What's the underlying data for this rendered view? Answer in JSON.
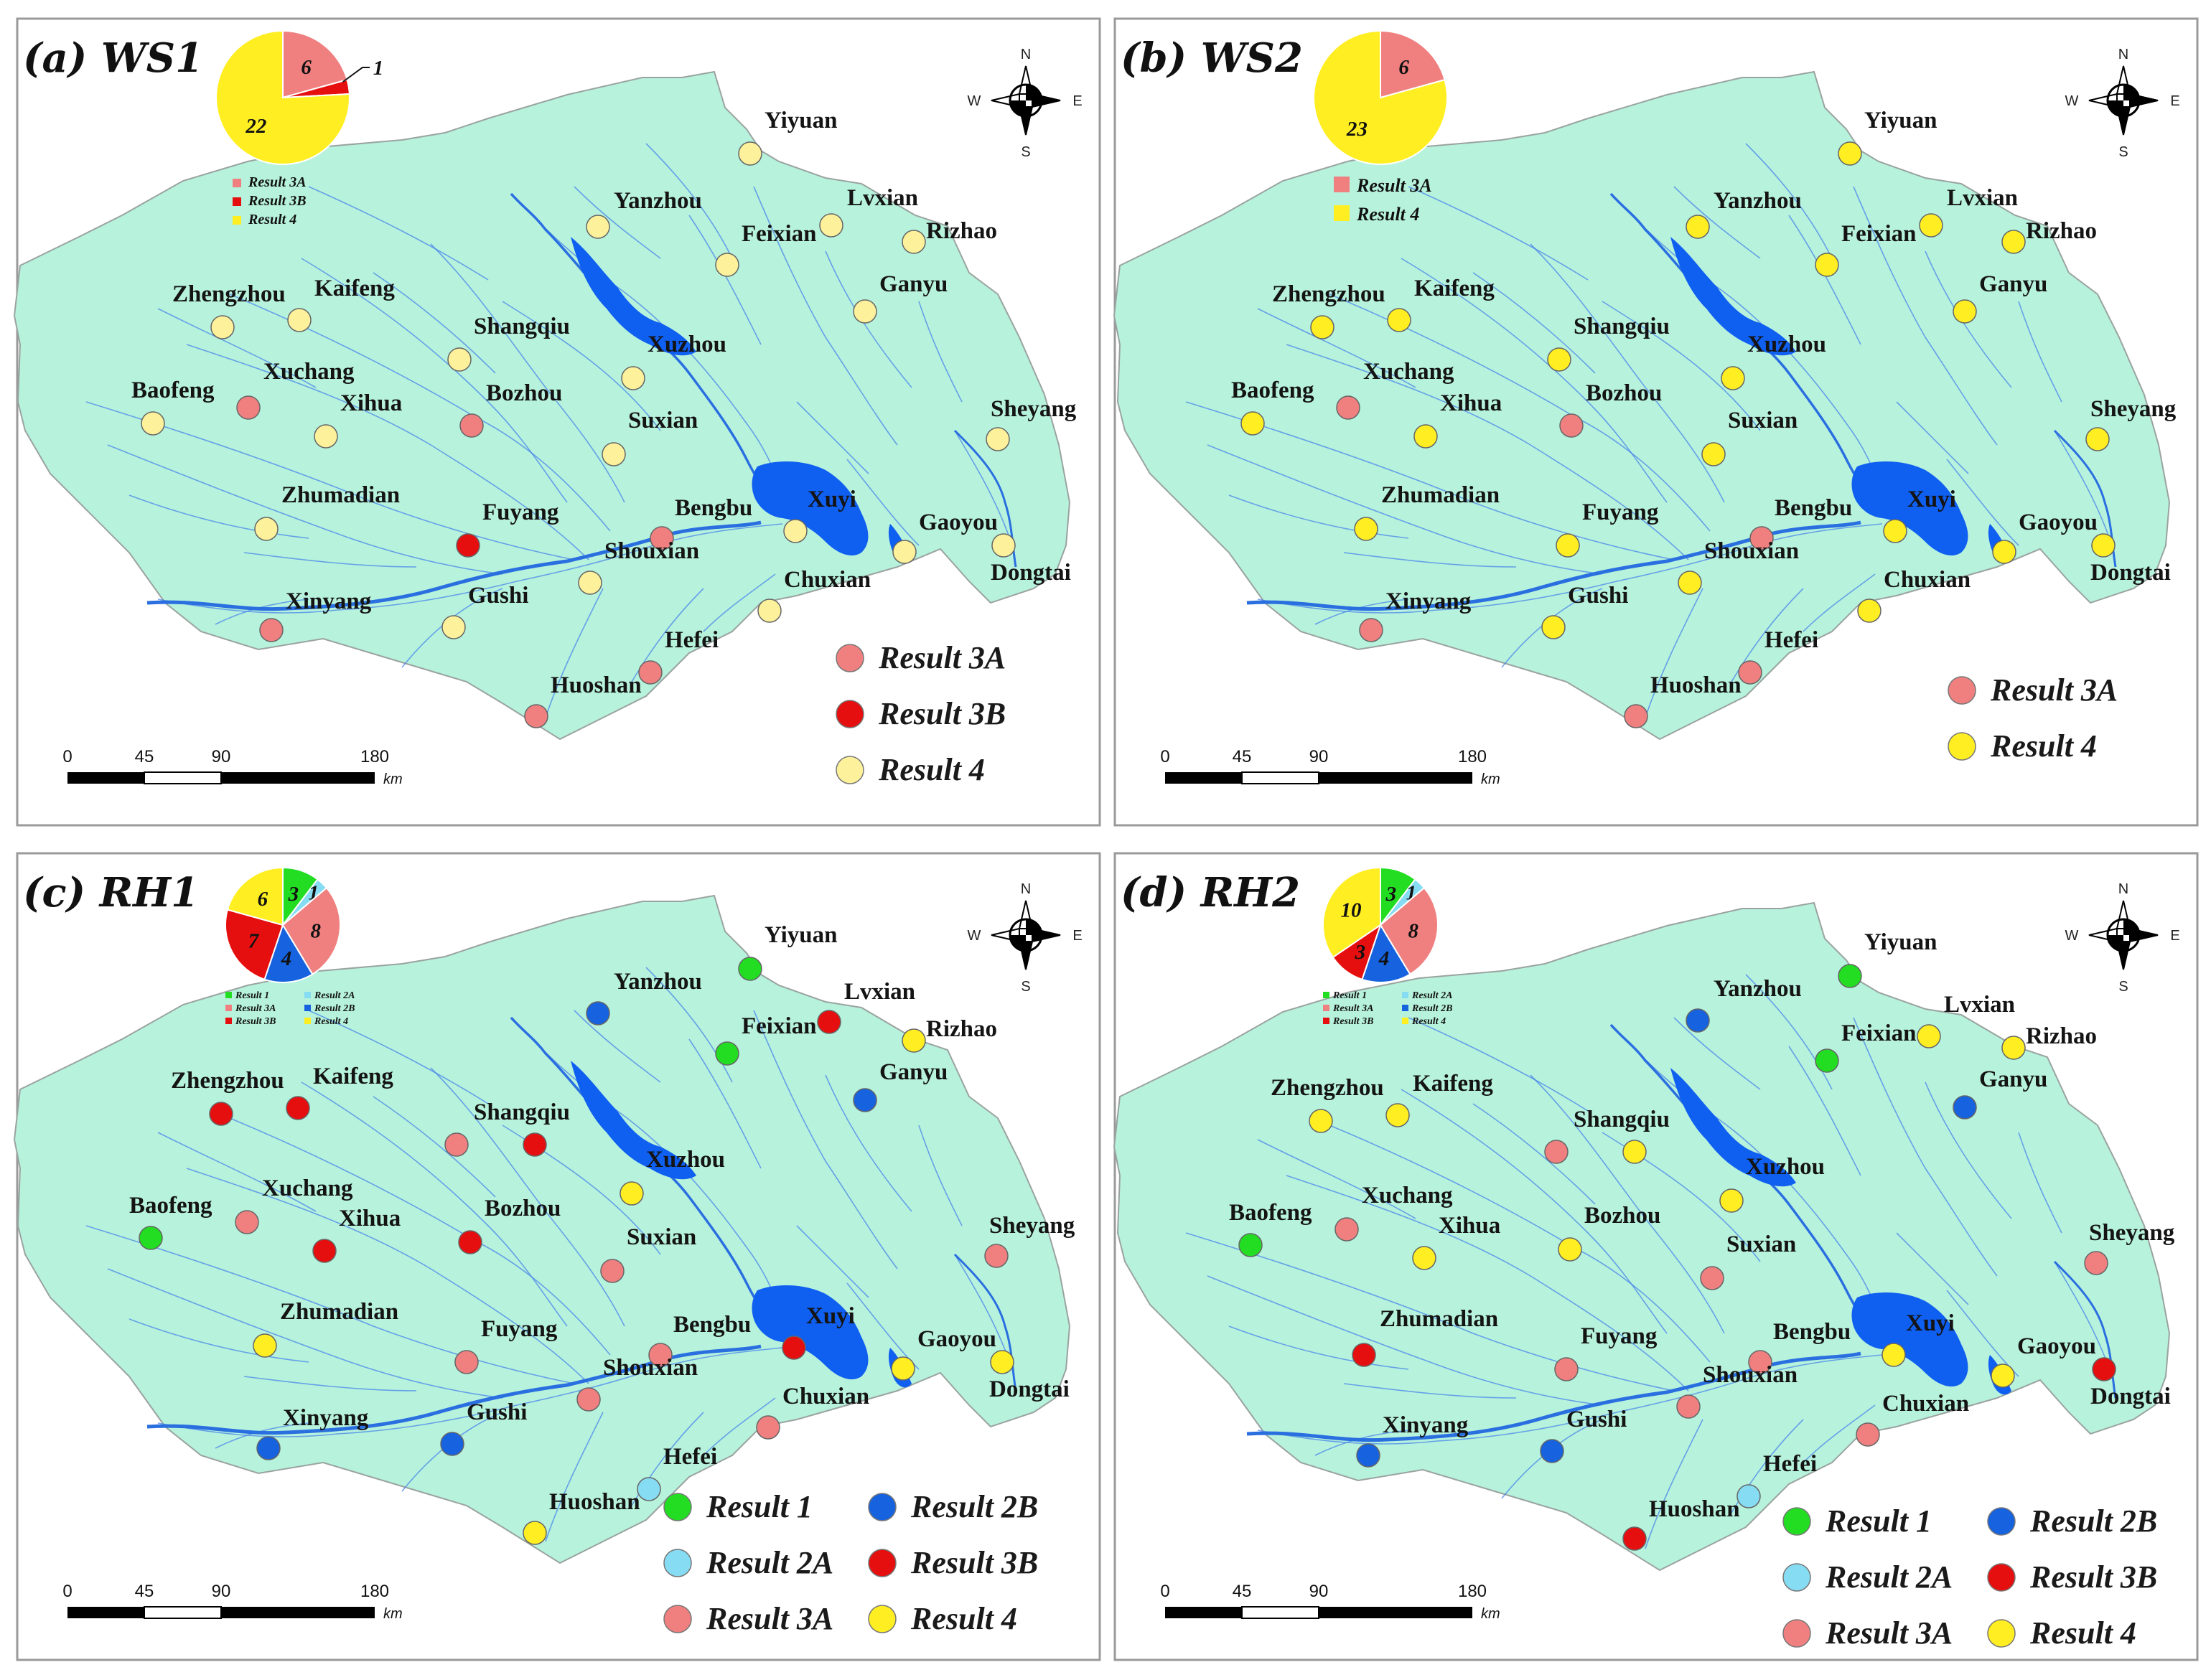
{
  "colors": {
    "land": "#b7f2dd",
    "border": "#9aa3a0",
    "river": "#2a6fe0",
    "lake": "#0f5ff0",
    "Result 1": "#22dd22",
    "Result 2A": "#86dcf2",
    "Result 2B": "#1762de",
    "Result 3A": "#f08080",
    "Result 3B": "#e60f0f",
    "Result 4": "#ffee22",
    "Result 4 pale": "#fdf29b"
  },
  "compass": {
    "n": "N",
    "s": "S",
    "e": "E",
    "w": "W"
  },
  "scale": {
    "ticks": [
      "0",
      "45",
      "90",
      "180"
    ],
    "unit": "km"
  },
  "cities": [
    {
      "name": "Yiyuan"
    },
    {
      "name": "Yanzhou"
    },
    {
      "name": "Lvxian"
    },
    {
      "name": "Rizhao"
    },
    {
      "name": "Feixian"
    },
    {
      "name": "Ganyu"
    },
    {
      "name": "Zhengzhou"
    },
    {
      "name": "Kaifeng"
    },
    {
      "name": "Shangqiu"
    },
    {
      "name": "Xuzhou"
    },
    {
      "name": "Baofeng"
    },
    {
      "name": "Xuchang"
    },
    {
      "name": "Xihua"
    },
    {
      "name": "Bozhou"
    },
    {
      "name": "Suxian"
    },
    {
      "name": "Sheyang"
    },
    {
      "name": "Zhumadian"
    },
    {
      "name": "Fuyang"
    },
    {
      "name": "Bengbu"
    },
    {
      "name": "Xuyi"
    },
    {
      "name": "Gaoyou"
    },
    {
      "name": "Dongtai"
    },
    {
      "name": "Shouxian"
    },
    {
      "name": "Chuxian"
    },
    {
      "name": "Xinyang"
    },
    {
      "name": "Gushi"
    },
    {
      "name": "Hefei"
    },
    {
      "name": "Huoshan"
    }
  ],
  "panels": [
    {
      "id": "ws1",
      "title": "(a) WS1",
      "legend": [
        "Result 3A",
        "Result 3B",
        "Result 4"
      ],
      "pie": {
        "slices": [
          {
            "cls": "Result 3A",
            "value": 6,
            "label": "6"
          },
          {
            "cls": "Result 3B",
            "value": 1,
            "label": "1"
          },
          {
            "cls": "Result 4",
            "value": 22,
            "label": "22"
          }
        ],
        "legend": [
          "Result 3A",
          "Result 3B",
          "Result 4"
        ]
      },
      "city_results": {
        "Yiyuan": "Result 4",
        "Yanzhou": "Result 4",
        "Lvxian": "Result 4",
        "Rizhao": "Result 4",
        "Feixian": "Result 4",
        "Ganyu": "Result 4",
        "Zhengzhou": "Result 4",
        "Kaifeng": "Result 4",
        "Shangqiu": "Result 4",
        "Xuzhou": "Result 4",
        "Baofeng": "Result 4",
        "Xuchang": "Result 3A",
        "Xihua": "Result 4",
        "Bozhou": "Result 3A",
        "Suxian": "Result 4",
        "Sheyang": "Result 4",
        "Zhumadian": "Result 4",
        "Fuyang": "Result 3B",
        "Bengbu": "Result 3A",
        "Xuyi": "Result 4",
        "Gaoyou": "Result 4",
        "Dongtai": "Result 4",
        "Shouxian": "Result 4",
        "Chuxian": "Result 4",
        "Xinyang": "Result 3A",
        "Gushi": "Result 4",
        "Hefei": "Result 3A",
        "Huoshan": "Result 3A"
      }
    },
    {
      "id": "ws2",
      "title": "(b) WS2",
      "legend": [
        "Result 3A",
        "Result 4"
      ],
      "pie": {
        "slices": [
          {
            "cls": "Result 3A",
            "value": 6,
            "label": "6"
          },
          {
            "cls": "Result 4",
            "value": 23,
            "label": "23"
          }
        ],
        "legend": [
          "Result 3A",
          "Result 4"
        ]
      },
      "city_results": {
        "Yiyuan": "Result 4",
        "Yanzhou": "Result 4",
        "Lvxian": "Result 4",
        "Rizhao": "Result 4",
        "Feixian": "Result 4",
        "Ganyu": "Result 4",
        "Zhengzhou": "Result 4",
        "Kaifeng": "Result 4",
        "Shangqiu": "Result 4",
        "Xuzhou": "Result 4",
        "Baofeng": "Result 4",
        "Xuchang": "Result 3A",
        "Xihua": "Result 4",
        "Bozhou": "Result 3A",
        "Suxian": "Result 4",
        "Sheyang": "Result 4",
        "Zhumadian": "Result 4",
        "Fuyang": "Result 4",
        "Bengbu": "Result 3A",
        "Xuyi": "Result 4",
        "Gaoyou": "Result 4",
        "Dongtai": "Result 4",
        "Shouxian": "Result 4",
        "Chuxian": "Result 4",
        "Xinyang": "Result 3A",
        "Gushi": "Result 4",
        "Hefei": "Result 3A",
        "Huoshan": "Result 3A"
      }
    },
    {
      "id": "rh1",
      "title": "(c) RH1",
      "legend": [
        "Result 1",
        "Result 2B",
        "Result 2A",
        "Result 3B",
        "Result 3A",
        "Result 4"
      ],
      "pie": {
        "slices": [
          {
            "cls": "Result 1",
            "value": 3,
            "label": "3"
          },
          {
            "cls": "Result 2A",
            "value": 1,
            "label": "1"
          },
          {
            "cls": "Result 3A",
            "value": 8,
            "label": "8"
          },
          {
            "cls": "Result 2B",
            "value": 4,
            "label": "4"
          },
          {
            "cls": "Result 3B",
            "value": 7,
            "label": "7"
          },
          {
            "cls": "Result 4",
            "value": 6,
            "label": "6"
          }
        ],
        "legend": [
          "Result 1",
          "Result 2A",
          "Result 3A",
          "Result 2B",
          "Result 3B",
          "Result 4"
        ]
      },
      "city_results": {
        "Yiyuan": "Result 1",
        "Yanzhou": "Result 2B",
        "Lvxian": "Result 3B",
        "Rizhao": "Result 4",
        "Feixian": "Result 1",
        "Ganyu": "Result 2B",
        "Zhengzhou": "Result 3B",
        "Kaifeng": "Result 3B",
        "Shangqiu": "Result 3B",
        "Xuzhou": "Result 4",
        "Baofeng": "Result 1",
        "Xuchang": "Result 3A",
        "Xihua": "Result 3B",
        "Bozhou": "Result 3B",
        "Suxian": "Result 3A",
        "Sheyang": "Result 3A",
        "Zhumadian": "Result 4",
        "Fuyang": "Result 3A",
        "Bengbu": "Result 3A",
        "Xuyi": "Result 3B",
        "Gaoyou": "Result 4",
        "Dongtai": "Result 4",
        "Shouxian": "Result 3A",
        "Chuxian": "Result 3A",
        "Xinyang": "Result 2B",
        "Gushi": "Result 2B",
        "Hefei": "Result 2A",
        "Huoshan": "Result 4",
        "ShangqiuWest": "Result 3A"
      }
    },
    {
      "id": "rh2",
      "title": "(d) RH2",
      "legend": [
        "Result 1",
        "Result 2B",
        "Result 2A",
        "Result 3B",
        "Result 3A",
        "Result 4"
      ],
      "pie": {
        "slices": [
          {
            "cls": "Result 1",
            "value": 3,
            "label": "3"
          },
          {
            "cls": "Result 2A",
            "value": 1,
            "label": "1"
          },
          {
            "cls": "Result 3A",
            "value": 8,
            "label": "8"
          },
          {
            "cls": "Result 2B",
            "value": 4,
            "label": "4"
          },
          {
            "cls": "Result 3B",
            "value": 3,
            "label": "3"
          },
          {
            "cls": "Result 4",
            "value": 10,
            "label": "10"
          }
        ],
        "legend": [
          "Result 1",
          "Result 2A",
          "Result 3A",
          "Result 2B",
          "Result 3B",
          "Result 4"
        ]
      },
      "city_results": {
        "Yiyuan": "Result 1",
        "Yanzhou": "Result 2B",
        "Lvxian": "Result 4",
        "Rizhao": "Result 4",
        "Feixian": "Result 1",
        "Ganyu": "Result 2B",
        "Zhengzhou": "Result 4",
        "Kaifeng": "Result 4",
        "Shangqiu": "Result 4",
        "Xuzhou": "Result 4",
        "Baofeng": "Result 1",
        "Xuchang": "Result 3A",
        "Xihua": "Result 4",
        "Bozhou": "Result 4",
        "Suxian": "Result 3A",
        "Sheyang": "Result 3A",
        "Zhumadian": "Result 3B",
        "Fuyang": "Result 3A",
        "Bengbu": "Result 3A",
        "Xuyi": "Result 4",
        "Gaoyou": "Result 4",
        "Dongtai": "Result 3B",
        "Shouxian": "Result 3A",
        "Chuxian": "Result 3A",
        "Xinyang": "Result 2B",
        "Gushi": "Result 2B",
        "Hefei": "Result 2A",
        "Huoshan": "Result 3B",
        "ShangqiuWest": "Result 3A"
      }
    }
  ]
}
